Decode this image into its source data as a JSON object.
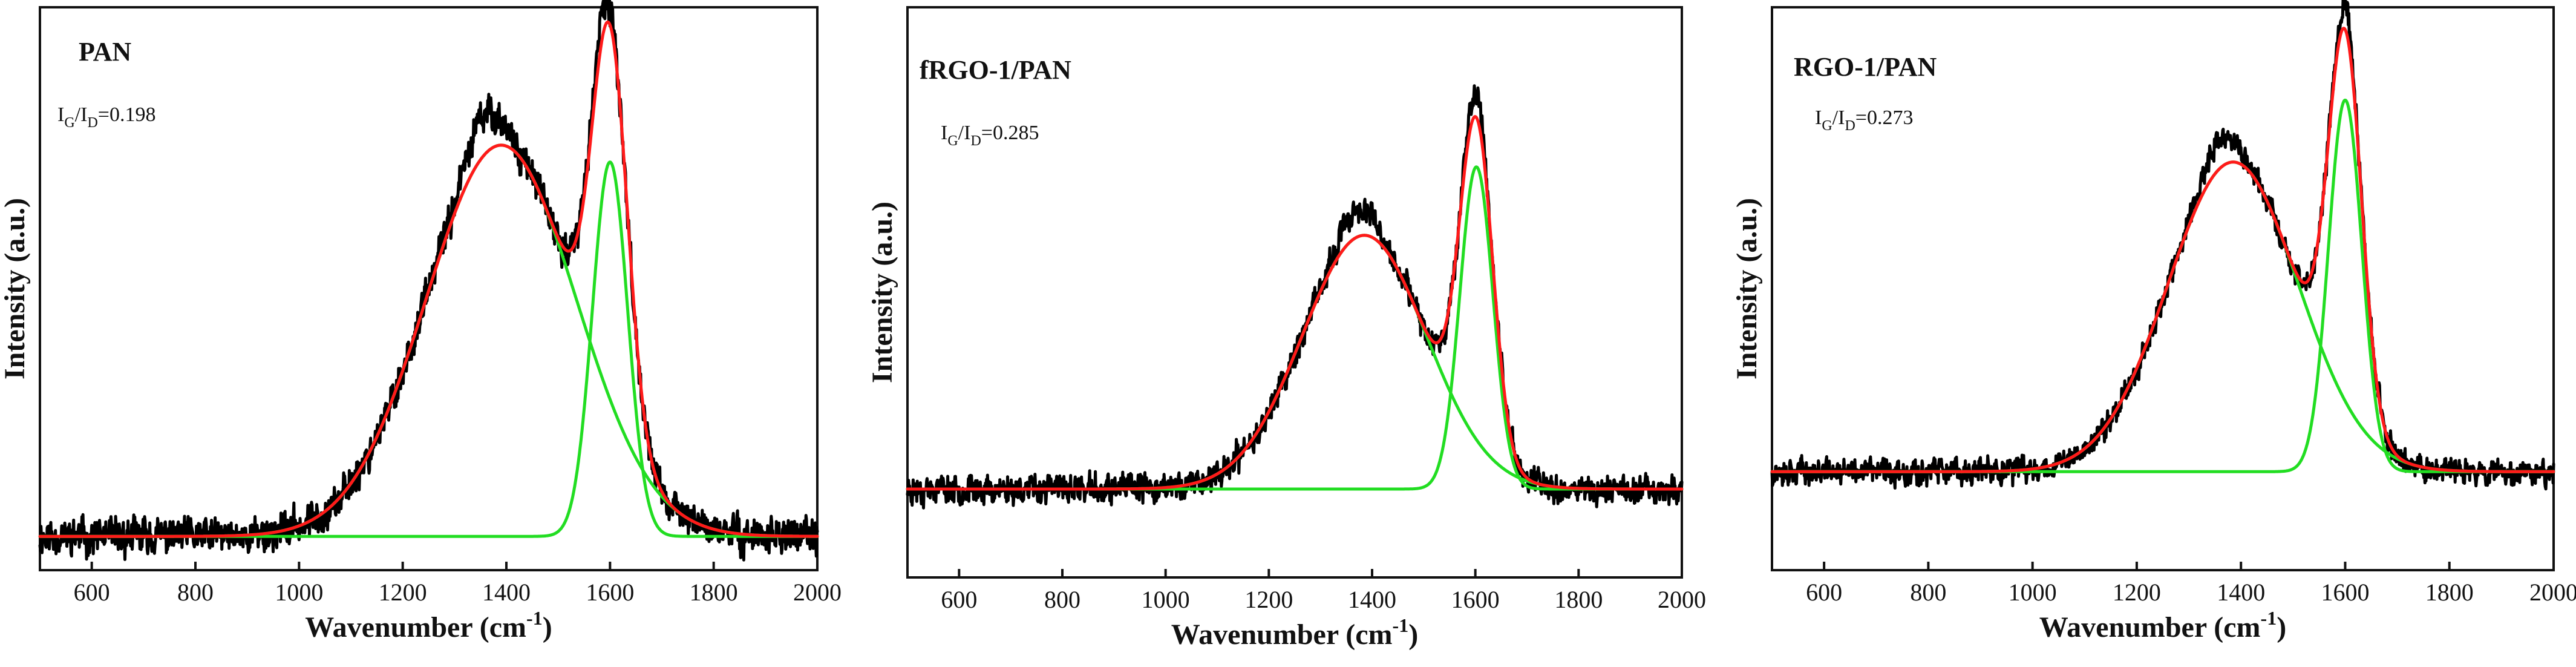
{
  "colors": {
    "experimental": "#000000",
    "fit_total": "#ff1a1a",
    "component": "#22dd22"
  },
  "chart_data": [
    {
      "type": "line",
      "title": "PAN",
      "ratio": {
        "label_main": "I",
        "sub_g": "G",
        "slash": "/I",
        "sub_d": "D",
        "value": "=0.198"
      },
      "xlabel": "Wavenumber (cm",
      "xlabel_sup": "-1",
      "xlabel_close": ")",
      "ylabel": "Intensity (a.u.)",
      "xlim": [
        500,
        2000
      ],
      "ylim": [
        0,
        1.0
      ],
      "x_ticks": [
        "600",
        "800",
        "1000",
        "1200",
        "1400",
        "1600",
        "1800",
        "2000"
      ],
      "baseline": 0.06,
      "peaks": {
        "d_band": {
          "center": 1390,
          "width": 145,
          "height": 0.695
        },
        "g_band": {
          "center": 1600,
          "width": 34,
          "height": 0.665
        }
      },
      "series": [
        {
          "name": "experimental",
          "noise": 0.018,
          "seed": 11,
          "bumps": [
            [
              1355,
              35,
              0.07
            ],
            [
              1580,
              20,
              0.04
            ]
          ]
        },
        {
          "name": "fit_total"
        },
        {
          "name": "component_d"
        },
        {
          "name": "component_g"
        }
      ]
    },
    {
      "type": "line",
      "title": "fRGO-1/PAN",
      "ratio": {
        "label_main": "I",
        "sub_g": "G",
        "slash": "/I",
        "sub_d": "D",
        "value": "=0.285"
      },
      "xlabel": "Wavenumber (cm",
      "xlabel_sup": "-1",
      "xlabel_close": ")",
      "ylabel": "Intensity (a.u.)",
      "xlim": [
        500,
        2000
      ],
      "ylim": [
        0,
        1.0
      ],
      "x_ticks": [
        "600",
        "800",
        "1000",
        "1200",
        "1400",
        "1600",
        "1800",
        "2000"
      ],
      "baseline": 0.155,
      "peaks": {
        "d_band": {
          "center": 1385,
          "width": 120,
          "height": 0.445
        },
        "g_band": {
          "center": 1602,
          "width": 32,
          "height": 0.565
        }
      },
      "series": [
        {
          "name": "experimental",
          "noise": 0.014,
          "seed": 23,
          "bumps": [
            [
              1370,
              30,
              0.05
            ],
            [
              1600,
              15,
              0.04
            ]
          ]
        },
        {
          "name": "fit_total"
        },
        {
          "name": "component_d"
        },
        {
          "name": "component_g"
        }
      ]
    },
    {
      "type": "line",
      "title": "RGO-1/PAN",
      "ratio": {
        "label_main": "I",
        "sub_g": "G",
        "slash": "/I",
        "sub_d": "D",
        "value": "=0.273"
      },
      "xlabel": "Wavenumber (cm",
      "xlabel_sup": "-1",
      "xlabel_close": ")",
      "ylabel": "Intensity (a.u.)",
      "xlim": [
        500,
        2000
      ],
      "ylim": [
        0,
        1.0
      ],
      "x_ticks": [
        "600",
        "800",
        "1000",
        "1200",
        "1400",
        "1600",
        "1800",
        "2000"
      ],
      "baseline": 0.175,
      "peaks": {
        "d_band": {
          "center": 1385,
          "width": 125,
          "height": 0.55
        },
        "g_band": {
          "center": 1600,
          "width": 32,
          "height": 0.66
        }
      },
      "series": [
        {
          "name": "experimental",
          "noise": 0.013,
          "seed": 37,
          "bumps": [
            [
              1360,
              30,
              0.05
            ],
            [
              1600,
              15,
              0.04
            ]
          ]
        },
        {
          "name": "fit_total"
        },
        {
          "name": "component_d"
        },
        {
          "name": "component_g"
        }
      ]
    }
  ]
}
